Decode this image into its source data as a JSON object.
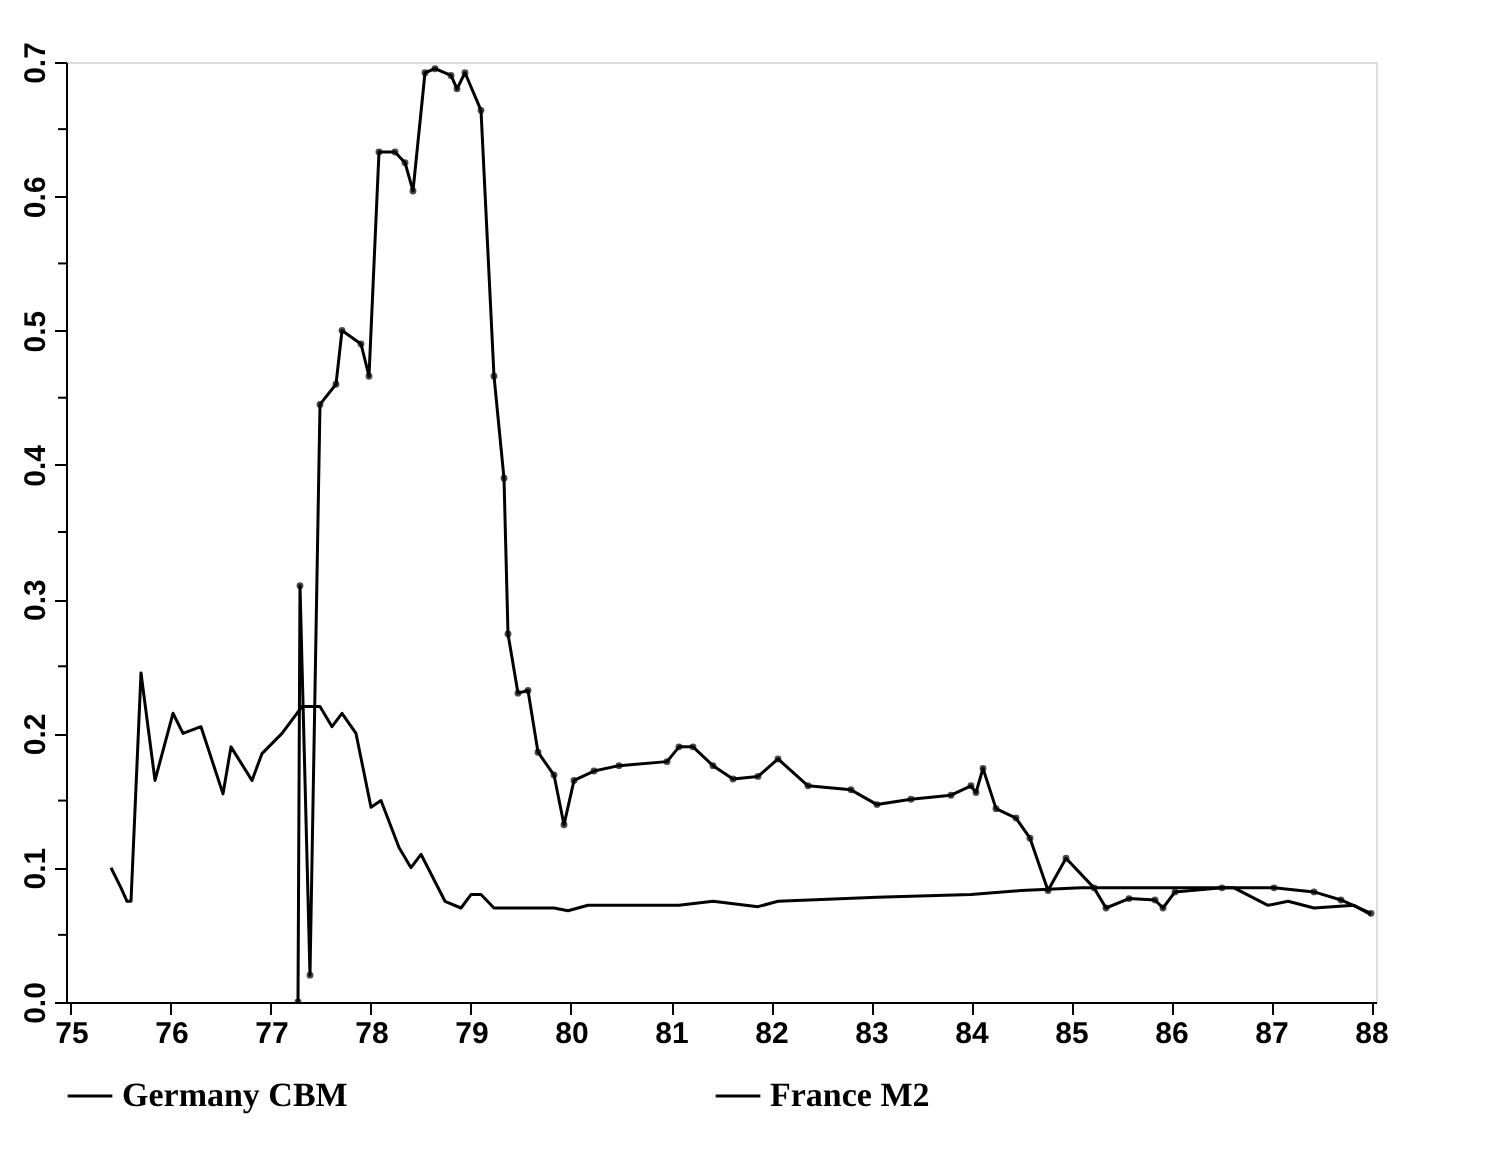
{
  "chart_data": {
    "type": "line",
    "xlim": [
      74.95,
      88.05
    ],
    "xticks": [
      75,
      76,
      77,
      78,
      79,
      80,
      81,
      82,
      83,
      84,
      85,
      86,
      87,
      88
    ],
    "ylim": [
      0,
      0.7
    ],
    "yticks": [
      {
        "value": 0,
        "label": "0.0"
      },
      {
        "value": 0.05,
        "label": null
      },
      0.1,
      {
        "value": 0.15,
        "label": null
      },
      0.2,
      {
        "value": 0.25,
        "label": null
      },
      0.3,
      {
        "value": 0.35,
        "label": null
      },
      0.4,
      {
        "value": 0.45,
        "label": null
      },
      0.5,
      {
        "value": 0.55,
        "label": null
      },
      0.6,
      {
        "value": 0.65,
        "label": null
      },
      0.7
    ],
    "grid": false,
    "legend": "bottom",
    "series": [
      {
        "name": "Germany CBM",
        "color": "#000000",
        "marker": "none",
        "x": [
          75.4,
          75.5,
          75.56,
          75.6,
          75.7,
          75.84,
          76.02,
          76.12,
          76.3,
          76.52,
          76.6,
          76.81,
          76.91,
          77.11,
          77.31,
          77.49,
          77.61,
          77.71,
          77.85,
          78.0,
          78.1,
          78.28,
          78.4,
          78.5,
          78.74,
          78.9,
          79.0,
          79.1,
          79.23,
          79.83,
          79.97,
          80.17,
          81.08,
          81.42,
          81.87,
          82.07,
          83.06,
          84.0,
          84.5,
          85.1,
          86.04,
          86.63,
          86.97,
          87.17,
          87.43,
          87.83,
          88.0
        ],
        "values": [
          0.1,
          0.085,
          0.075,
          0.075,
          0.245,
          0.165,
          0.215,
          0.2,
          0.205,
          0.155,
          0.19,
          0.165,
          0.185,
          0.2,
          0.22,
          0.22,
          0.205,
          0.215,
          0.2,
          0.145,
          0.15,
          0.115,
          0.1,
          0.11,
          0.075,
          0.07,
          0.08,
          0.08,
          0.07,
          0.07,
          0.068,
          0.072,
          0.072,
          0.075,
          0.071,
          0.075,
          0.078,
          0.08,
          0.083,
          0.085,
          0.085,
          0.085,
          0.072,
          0.075,
          0.07,
          0.072,
          0.065
        ]
      },
      {
        "name": "France M2",
        "color": "#000000",
        "marker": "circle",
        "x": [
          77.27,
          77.29,
          77.39,
          77.49,
          77.65,
          77.71,
          77.9,
          77.98,
          78.08,
          78.24,
          78.34,
          78.42,
          78.54,
          78.64,
          78.8,
          78.86,
          78.94,
          79.1,
          79.23,
          79.33,
          79.37,
          79.47,
          79.57,
          79.67,
          79.83,
          79.93,
          80.03,
          80.23,
          80.48,
          80.96,
          81.08,
          81.22,
          81.42,
          81.62,
          81.87,
          82.07,
          82.37,
          82.8,
          83.06,
          83.4,
          83.8,
          84.0,
          84.05,
          84.12,
          84.25,
          84.45,
          84.59,
          84.77,
          84.95,
          85.23,
          85.35,
          85.58,
          85.84,
          85.92,
          86.04,
          86.51,
          87.03,
          87.43,
          87.7,
          88.0
        ],
        "values": [
          0.0,
          0.31,
          0.02,
          0.445,
          0.46,
          0.5,
          0.49,
          0.466,
          0.633,
          0.633,
          0.625,
          0.604,
          0.692,
          0.695,
          0.69,
          0.68,
          0.692,
          0.664,
          0.466,
          0.39,
          0.274,
          0.23,
          0.232,
          0.186,
          0.169,
          0.132,
          0.165,
          0.172,
          0.176,
          0.179,
          0.19,
          0.19,
          0.176,
          0.166,
          0.168,
          0.181,
          0.161,
          0.158,
          0.147,
          0.151,
          0.154,
          0.161,
          0.156,
          0.174,
          0.144,
          0.137,
          0.122,
          0.083,
          0.107,
          0.085,
          0.07,
          0.077,
          0.076,
          0.07,
          0.082,
          0.085,
          0.085,
          0.082,
          0.076,
          0.066
        ]
      }
    ]
  }
}
